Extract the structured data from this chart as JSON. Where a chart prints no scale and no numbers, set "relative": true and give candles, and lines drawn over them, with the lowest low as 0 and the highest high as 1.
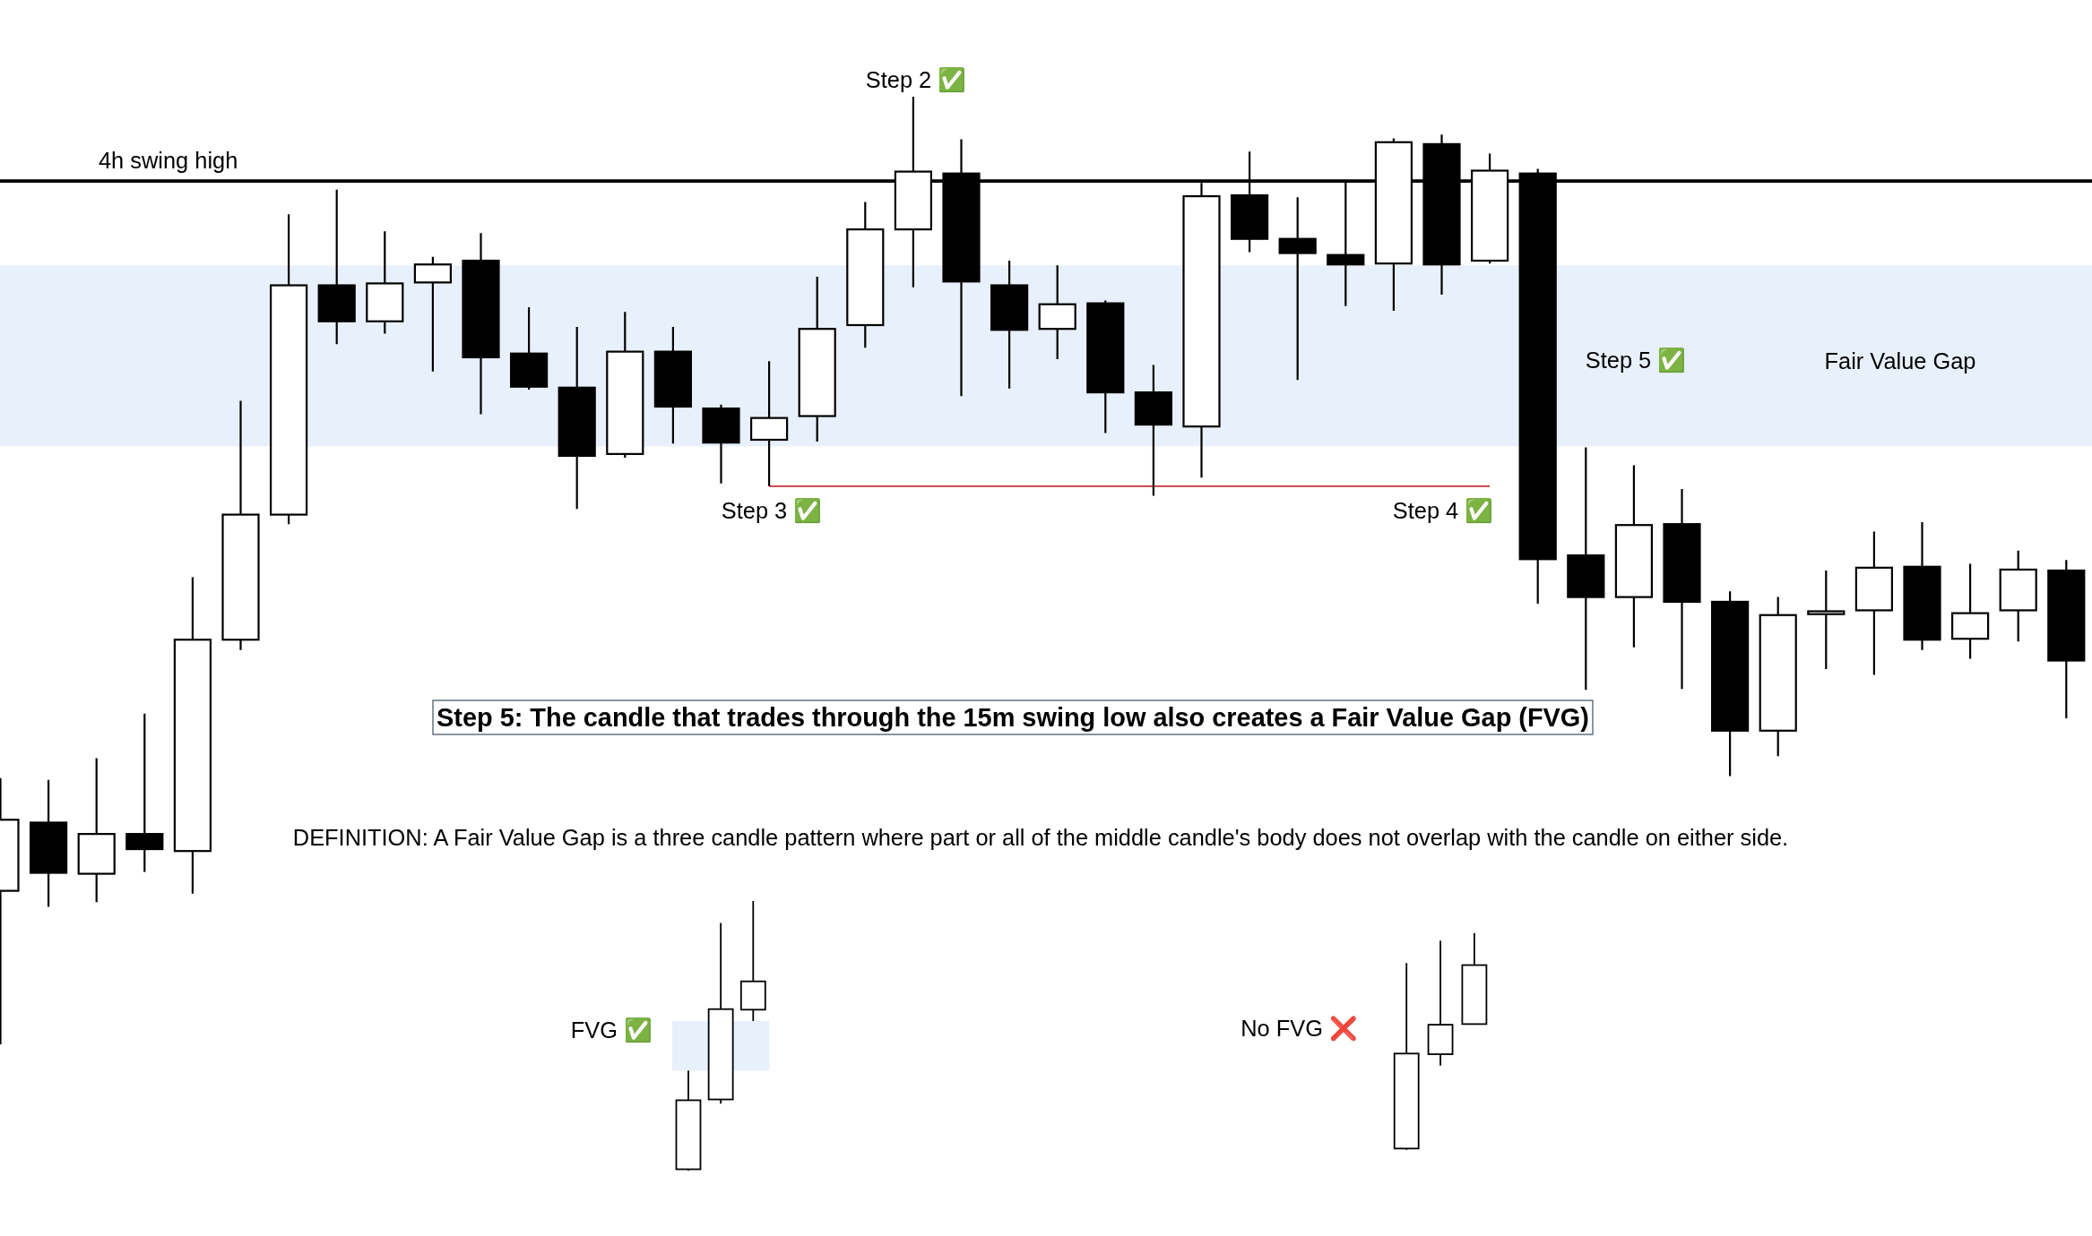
{
  "chart_data": [
    {
      "type": "candlestick",
      "title": "Step 5: The candle that trades through the 15m swing low also creates a Fair Value Gap (FVG)",
      "relative": true,
      "categories": [
        null,
        null,
        null,
        null,
        null,
        null,
        null,
        null,
        null,
        null,
        null,
        null,
        null,
        null,
        null,
        null,
        null,
        null,
        null,
        null,
        null,
        null,
        null,
        null,
        null,
        null,
        null,
        null,
        null,
        null,
        null,
        null,
        null,
        null,
        null,
        null,
        null,
        null,
        null,
        null,
        null,
        null,
        null,
        null
      ],
      "ohlc": [
        [
          0.162,
          0.281,
          0,
          0.237
        ],
        [
          0.234,
          0.279,
          0.145,
          0.181
        ],
        [
          0.18,
          0.302,
          0.15,
          0.222
        ],
        [
          0.222,
          0.349,
          0.182,
          0.206
        ],
        [
          0.204,
          0.493,
          0.159,
          0.427
        ],
        [
          0.427,
          0.679,
          0.416,
          0.559
        ],
        [
          0.559,
          0.876,
          0.549,
          0.801
        ],
        [
          0.801,
          0.902,
          0.739,
          0.763
        ],
        [
          0.763,
          0.858,
          0.75,
          0.803
        ],
        [
          0.804,
          0.831,
          0.71,
          0.823
        ],
        [
          0.827,
          0.856,
          0.665,
          0.725
        ],
        [
          0.729,
          0.778,
          0.691,
          0.694
        ],
        [
          0.693,
          0.757,
          0.565,
          0.621
        ],
        [
          0.623,
          0.773,
          0.619,
          0.731
        ],
        [
          0.731,
          0.757,
          0.634,
          0.673
        ],
        [
          0.671,
          0.675,
          0.592,
          0.635
        ],
        [
          0.638,
          0.721,
          0.589,
          0.661
        ],
        [
          0.663,
          0.81,
          0.636,
          0.755
        ],
        [
          0.759,
          0.889,
          0.735,
          0.86
        ],
        [
          0.86,
          1,
          0.799,
          0.921
        ],
        [
          0.919,
          0.955,
          0.684,
          0.805
        ],
        [
          0.801,
          0.827,
          0.692,
          0.754
        ],
        [
          0.755,
          0.822,
          0.723,
          0.781
        ],
        [
          0.782,
          0.785,
          0.645,
          0.688
        ],
        [
          0.688,
          0.717,
          0.579,
          0.654
        ],
        [
          0.652,
          0.909,
          0.598,
          0.895
        ],
        [
          0.896,
          0.942,
          0.836,
          0.85
        ],
        [
          0.85,
          0.894,
          0.701,
          0.835
        ],
        [
          0.833,
          0.91,
          0.779,
          0.823
        ],
        [
          0.824,
          0.956,
          0.774,
          0.952
        ],
        [
          0.95,
          0.96,
          0.791,
          0.823
        ],
        [
          0.827,
          0.94,
          0.824,
          0.922
        ],
        [
          0.919,
          0.924,
          0.465,
          0.512
        ],
        [
          0.516,
          0.63,
          0.374,
          0.472
        ],
        [
          0.472,
          0.611,
          0.419,
          0.548
        ],
        [
          0.549,
          0.586,
          0.375,
          0.467
        ],
        [
          0.467,
          0.478,
          0.283,
          0.331
        ],
        [
          0.331,
          0.472,
          0.304,
          0.453
        ],
        [
          0.454,
          0.5,
          0.396,
          0.457
        ],
        [
          0.458,
          0.541,
          0.39,
          0.503
        ],
        [
          0.504,
          0.551,
          0.416,
          0.427
        ],
        [
          0.428,
          0.507,
          0.407,
          0.455
        ],
        [
          0.458,
          0.521,
          0.425,
          0.501
        ],
        [
          0.5,
          0.511,
          0.344,
          0.405
        ]
      ],
      "series": [
        {
          "type": "line",
          "color": "#c8323c",
          "values": [
            null,
            null,
            null,
            null,
            null,
            null,
            null,
            null,
            null,
            null,
            null,
            null,
            null,
            null,
            null,
            null,
            0.589,
            0.589,
            0.589,
            0.589,
            0.589,
            0.589,
            0.589,
            0.589,
            0.589,
            0.589,
            0.589,
            0.589,
            0.589,
            0.589,
            0.589,
            0.589,
            null,
            null,
            null,
            null,
            null,
            null,
            null,
            null,
            null,
            null,
            null,
            null
          ]
        }
      ],
      "ref_lines": [
        {
          "axis": "y",
          "value": 0.911,
          "label": "4h swing high",
          "color": "#000000"
        }
      ],
      "bands": [
        {
          "axis": "y",
          "from": 0.631,
          "to": 0.822,
          "label": "Fair Value Gap",
          "color": "#e8f0fb"
        }
      ],
      "annotations": [
        "Step 2 ✅",
        "Step 3 ✅",
        "Step 4 ✅",
        "Step 5 ✅",
        "DEFINITION: A Fair Value Gap is a three candle pattern where part or all of the middle candle's body does not overlap with the candle on either side.",
        "FVG ✅",
        "No FVG ❌"
      ]
    },
    {
      "type": "candlestick",
      "relative": true,
      "categories": [
        null,
        null,
        null
      ],
      "ohlc": [
        [
          0.005,
          0.371,
          0,
          0.261
        ],
        [
          0.264,
          0.919,
          0.248,
          0.599
        ],
        [
          0.597,
          1,
          0.555,
          0.702
        ]
      ],
      "bands": [
        {
          "axis": "y",
          "from": 0.371,
          "to": 0.555,
          "color": "#e8f0fb"
        }
      ]
    },
    {
      "type": "candlestick",
      "relative": true,
      "categories": [
        null,
        null,
        null
      ],
      "ohlc": [
        [
          0.006,
          0.861,
          0,
          0.444
        ],
        [
          0.441,
          0.965,
          0.388,
          0.577
        ],
        [
          0.58,
          1,
          0.58,
          0.852
        ]
      ]
    }
  ]
}
